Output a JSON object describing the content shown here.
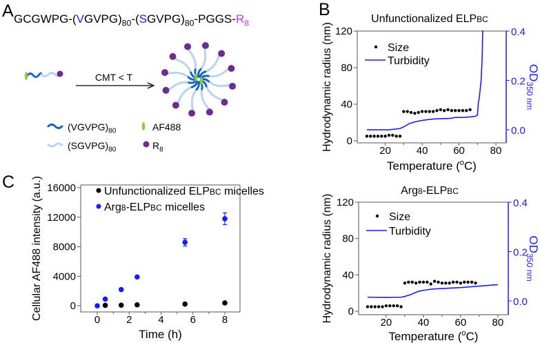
{
  "panel_labels": {
    "a": "A",
    "b": "B",
    "c": "C"
  },
  "panel_a": {
    "sequence": [
      {
        "t": "GCGWPG-("
      },
      {
        "t": "V",
        "c": "#1a1aff"
      },
      {
        "t": "GVPG)"
      },
      {
        "t": "80",
        "s": "sub"
      },
      {
        "t": "-("
      },
      {
        "t": "S",
        "c": "#1a1aff"
      },
      {
        "t": "GVPG)"
      },
      {
        "t": "80",
        "s": "sub"
      },
      {
        "t": "-PGGS-"
      },
      {
        "t": "R",
        "c": "#cc33ff"
      },
      {
        "t": "8",
        "s": "sub",
        "c": "#cc33ff"
      }
    ],
    "arrow_label": [
      {
        "t": "CMT < T"
      }
    ],
    "legend": [
      {
        "icon": "hydrophobic-block-icon",
        "parts": [
          {
            "t": "(VGVPG)"
          },
          {
            "t": "80",
            "s": "sub"
          }
        ]
      },
      {
        "icon": "hydrophilic-block-icon",
        "parts": [
          {
            "t": "(SGVPG)"
          },
          {
            "t": "80",
            "s": "sub"
          }
        ]
      },
      {
        "icon": "dye-icon",
        "parts": [
          {
            "t": "AF488"
          }
        ]
      },
      {
        "icon": "r8-peptide-icon",
        "parts": [
          {
            "t": "R"
          },
          {
            "t": "8",
            "s": "sub"
          }
        ]
      }
    ],
    "colors": {
      "core": "#1565c0",
      "corona": "#b9d3ee",
      "dye": "#8dc63f",
      "r8": "#6b2d90"
    }
  },
  "chart_data": [
    {
      "type": "scatter+line",
      "panel": "B",
      "title": [
        {
          "t": "Unfunctionalized ELP"
        },
        {
          "t": "BC",
          "s": "small"
        }
      ],
      "xlabel": [
        {
          "t": "Temperature ("
        },
        {
          "t": "o",
          "s": "sup"
        },
        {
          "t": "C)"
        }
      ],
      "ylabel": [
        {
          "t": "Hydrodynamic radius (nm)"
        }
      ],
      "y2label": [
        {
          "t": "OD"
        },
        {
          "t": "350 nm",
          "s": "sub"
        }
      ],
      "xlim": [
        4.8,
        85.6
      ],
      "xticks": [
        20,
        40,
        60,
        80
      ],
      "xticklabels": [
        "20",
        "40",
        "60",
        "80"
      ],
      "ylim": [
        -2.3,
        120
      ],
      "yticks": [
        0,
        40,
        80,
        120
      ],
      "yticklabels": [
        "0",
        "40",
        "80",
        "120"
      ],
      "y2lim": [
        -0.053,
        0.4
      ],
      "y2ticks": [
        0,
        0.2,
        0.4
      ],
      "y2ticklabels": [
        "0.0",
        "0.2",
        "0.4"
      ],
      "legend_position": "top-left",
      "series": [
        {
          "name": "Size",
          "kind": "scatter",
          "axis": "left",
          "color": "#000000",
          "x": [
            10,
            12,
            14,
            16,
            18,
            20,
            22,
            24,
            26,
            28,
            30,
            32,
            34,
            36,
            38,
            40,
            42,
            44,
            46,
            48,
            50,
            52,
            54,
            56,
            58,
            60,
            62,
            64,
            66
          ],
          "y": [
            5,
            5,
            5,
            5,
            5,
            5,
            6,
            6,
            5,
            5,
            32,
            32,
            31,
            30,
            31,
            32,
            32,
            32,
            32,
            33,
            34,
            33,
            34,
            33,
            33,
            33,
            33,
            33,
            34
          ]
        },
        {
          "name": "Turbidity",
          "kind": "line",
          "axis": "right",
          "color": "#1a1aff",
          "x": [
            10,
            22,
            28,
            30,
            33,
            36,
            40,
            45,
            50,
            55,
            58,
            62,
            66,
            69,
            70,
            70.5,
            71,
            72,
            72.6,
            73
          ],
          "y": [
            0.0,
            0.0,
            0.005,
            0.012,
            0.025,
            0.032,
            0.038,
            0.043,
            0.045,
            0.046,
            0.05,
            0.05,
            0.052,
            0.055,
            0.06,
            0.11,
            0.13,
            0.2,
            0.3,
            0.45
          ]
        }
      ]
    },
    {
      "type": "scatter+line",
      "panel": "B",
      "title": [
        {
          "t": "Arg"
        },
        {
          "t": "8",
          "s": "small"
        },
        {
          "t": "-ELP"
        },
        {
          "t": "BC",
          "s": "small"
        }
      ],
      "xlabel": [
        {
          "t": "Temperature ("
        },
        {
          "t": "o",
          "s": "sup"
        },
        {
          "t": "C)"
        }
      ],
      "ylabel": [
        {
          "t": "Hydrodynamic radius (nm)"
        }
      ],
      "y2label": [
        {
          "t": "OD"
        },
        {
          "t": "350 nm",
          "s": "sub"
        }
      ],
      "xlim": [
        5.2,
        85.6
      ],
      "xticks": [
        20,
        40,
        60,
        80
      ],
      "xticklabels": [
        "20",
        "40",
        "60",
        "80"
      ],
      "ylim": [
        -3.8,
        120
      ],
      "yticks": [
        0,
        40,
        80,
        120
      ],
      "yticklabels": [
        "0",
        "40",
        "80",
        "120"
      ],
      "y2lim": [
        -0.056,
        0.4
      ],
      "y2ticks": [
        0,
        0.2,
        0.4
      ],
      "y2ticklabels": [
        "0.0",
        "0.2",
        "0.4"
      ],
      "legend_position": "top-left",
      "series": [
        {
          "name": "Size",
          "kind": "scatter",
          "axis": "left",
          "color": "#000000",
          "x": [
            10,
            12,
            14,
            16,
            18,
            20,
            22,
            24,
            26,
            28,
            30,
            32,
            34,
            36,
            38,
            40,
            42,
            44,
            46,
            48,
            50,
            52,
            54,
            56,
            58,
            60,
            62,
            64,
            66,
            68
          ],
          "y": [
            5,
            5,
            5,
            5,
            5,
            6,
            6,
            6,
            6,
            5,
            31,
            32,
            32,
            31,
            32,
            32,
            32,
            30,
            33,
            32,
            31,
            31,
            31,
            32,
            32,
            31,
            32,
            32,
            32,
            31
          ]
        },
        {
          "name": "Turbidity",
          "kind": "line",
          "axis": "right",
          "color": "#1a1aff",
          "x": [
            10,
            20,
            28,
            30,
            33,
            36,
            38,
            40,
            45,
            50,
            60,
            70,
            80
          ],
          "y": [
            0.015,
            0.014,
            0.015,
            0.018,
            0.025,
            0.035,
            0.04,
            0.043,
            0.048,
            0.05,
            0.054,
            0.06,
            0.066
          ]
        }
      ]
    },
    {
      "type": "scatter",
      "panel": "C",
      "xlabel": [
        {
          "t": "Time (h)"
        }
      ],
      "ylabel": [
        {
          "t": "Cellular AF488 intensity (a.u.)"
        }
      ],
      "xlim": [
        -1.04,
        8.95
      ],
      "xticks": [
        0,
        2,
        4,
        6,
        8
      ],
      "xticklabels": [
        "0",
        "2",
        "4",
        "6",
        "8"
      ],
      "ylim": [
        -840,
        16375
      ],
      "yticks": [
        0,
        4000,
        8000,
        12000,
        16000
      ],
      "yticklabels": [
        "0",
        "4000",
        "8000",
        "12000",
        "16000"
      ],
      "legend_position": "top",
      "series": [
        {
          "name": [
            {
              "t": "Unfunctionalized ELP"
            },
            {
              "t": "BC",
              "s": "small"
            },
            {
              "t": " micelles"
            }
          ],
          "kind": "scatter",
          "color": "#000000",
          "x": [
            0.5,
            1.5,
            2.5,
            5.5,
            8
          ],
          "y": [
            50,
            80,
            130,
            230,
            380
          ],
          "err": [
            0,
            0,
            0,
            0,
            0
          ]
        },
        {
          "name": [
            {
              "t": "Arg"
            },
            {
              "t": "8",
              "s": "small"
            },
            {
              "t": "-ELP"
            },
            {
              "t": "BC",
              "s": "small"
            },
            {
              "t": " micelles"
            }
          ],
          "kind": "scatter",
          "color": "#1a1aff",
          "x": [
            0,
            0.5,
            1.5,
            2.5,
            5.5,
            8
          ],
          "y": [
            0,
            900,
            2200,
            3900,
            8600,
            11800
          ],
          "err": [
            0,
            0,
            0,
            0,
            500,
            800
          ]
        }
      ]
    }
  ]
}
